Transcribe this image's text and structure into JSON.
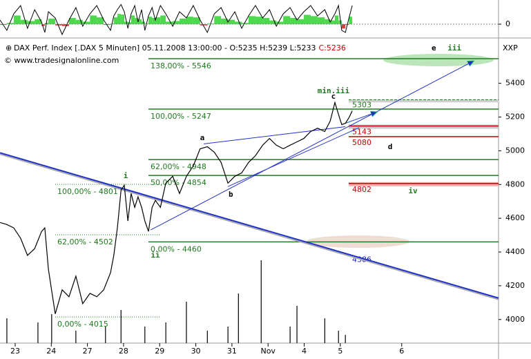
{
  "chart_data": {
    "type": "line",
    "title": "DAX Perf. Index [.DAX  5 Minuten] 05.11.2008 13:00:00 - O:5235 H:5239 L:5233",
    "title_close": "C:5236",
    "source": "© www.tradesignalonline.com",
    "axis_label": "XXP",
    "xlim": [
      -0.42,
      13.38
    ],
    "xticks": [
      {
        "value": 0,
        "label": "23"
      },
      {
        "value": 1,
        "label": "24"
      },
      {
        "value": 2,
        "label": "27"
      },
      {
        "value": 3,
        "label": "28"
      },
      {
        "value": 4,
        "label": "29"
      },
      {
        "value": 5,
        "label": "30"
      },
      {
        "value": 6,
        "label": "31"
      },
      {
        "value": 7,
        "label": "Nov"
      },
      {
        "value": 8,
        "label": "4"
      },
      {
        "value": 9,
        "label": "5"
      },
      {
        "value": 10.7,
        "label": "6"
      }
    ],
    "ylim": [
      3860,
      5640
    ],
    "yticks": [
      4000,
      4200,
      4400,
      4600,
      4800,
      5000,
      5200,
      5400
    ],
    "x": [
      -0.42,
      -0.23,
      -0.04,
      0.15,
      0.34,
      0.54,
      0.73,
      0.82,
      0.92,
      1.11,
      1.3,
      1.49,
      1.68,
      1.87,
      2.07,
      2.26,
      2.45,
      2.64,
      2.73,
      2.83,
      2.93,
      3.02,
      3.12,
      3.21,
      3.31,
      3.4,
      3.5,
      3.59,
      3.69,
      3.79,
      3.88,
      4.02,
      4.17,
      4.36,
      4.55,
      4.74,
      4.93,
      5.12,
      5.32,
      5.51,
      5.7,
      5.89,
      6.08,
      6.27,
      6.46,
      6.65,
      6.85,
      7.04,
      7.23,
      7.42,
      7.61,
      7.8,
      7.99,
      8.18,
      8.37,
      8.57,
      8.72,
      8.85,
      8.95,
      9.04,
      9.14,
      9.24,
      9.33
    ],
    "series": [
      {
        "name": "DAX",
        "color": "#000000",
        "values": [
          4575,
          4563,
          4543,
          4482,
          4380,
          4420,
          4522,
          4543,
          4298,
          4033,
          4176,
          4135,
          4257,
          4094,
          4155,
          4135,
          4176,
          4278,
          4380,
          4543,
          4767,
          4796,
          4584,
          4747,
          4665,
          4727,
          4665,
          4584,
          4522,
          4665,
          4706,
          4665,
          4808,
          4849,
          4747,
          4849,
          4910,
          5012,
          5024,
          4992,
          4931,
          4808,
          4849,
          4869,
          4931,
          4971,
          5033,
          5073,
          5033,
          5012,
          5033,
          5053,
          5073,
          5114,
          5134,
          5114,
          5176,
          5286,
          5216,
          5155,
          5163,
          5196,
          5237
        ]
      }
    ],
    "oscillator": {
      "color": "#000000",
      "ylim": [
        -0.5,
        1
      ],
      "yticks": [
        0
      ],
      "values": [
        0.2,
        -0.3,
        0.5,
        0.9,
        -0.2,
        0.7,
        0.1,
        -0.4,
        0.6,
        0.3,
        -0.5,
        0.2,
        0.8,
        -0.1,
        0.5,
        0.9,
        0.2,
        -0.3,
        0.4,
        0.7,
        0.95,
        0.6,
        -0.2,
        0.5,
        0.9,
        0.1,
        0.7,
        -0.3,
        0.4,
        0.8,
        0.2,
        0.9,
        0.5,
        -0.1,
        0.6,
        0.3,
        0.9,
        0.2,
        -0.4,
        0.5,
        0.8,
        0.1,
        0.6,
        -0.2,
        0.4,
        0.9,
        0.3,
        0.7,
        -0.1,
        0.5,
        0.8,
        0.2,
        0.6,
        0.9,
        0.4,
        0.7,
        0.1,
        0.5,
        0.9,
        -0.3,
        -0.4,
        0.3,
        0.9
      ]
    },
    "volume": {
      "color": "#000000",
      "ylim": [
        0,
        100
      ],
      "x": [
        -0.23,
        0.63,
        1.01,
        1.68,
        2.5,
        2.93,
        3.59,
        4.17,
        4.74,
        5.32,
        5.89,
        6.18,
        6.81,
        7.61,
        7.8,
        8.57,
        8.95,
        9.14
      ],
      "values": [
        30,
        25,
        35,
        15,
        20,
        40,
        20,
        25,
        50,
        15,
        20,
        60,
        100,
        20,
        45,
        30,
        15,
        10
      ]
    },
    "levels": [
      {
        "value": 5546,
        "label": "138,00% - 5546",
        "style": "solid"
      },
      {
        "value": 5247,
        "label": "100,00% - 5247",
        "style": "solid"
      },
      {
        "value": 4948,
        "label": "62,00% - 4948",
        "style": "solid"
      },
      {
        "value": 4854,
        "label": "50,00% - 4854",
        "style": "solid"
      },
      {
        "value": 4460,
        "label": "0,00% - 4460",
        "style": "solid"
      },
      {
        "value": 4801,
        "label": "100,00% - 4801",
        "style": "dotted"
      },
      {
        "value": 4502,
        "label": "62,00% - 4502",
        "style": "dotted"
      },
      {
        "value": 4015,
        "label": "0,00% - 4015",
        "style": "dotted"
      }
    ],
    "level_color": "#1f7a1f",
    "zones": [
      {
        "value": 5303,
        "color": "#1f7a1f",
        "style": "dashed"
      },
      {
        "value": 5143,
        "color": "#cc0000",
        "style": "band"
      },
      {
        "value": 5080,
        "color": "#cc0000",
        "style": "solid"
      },
      {
        "value": 4802,
        "color": "#cc0000",
        "style": "band"
      },
      {
        "value": 4386,
        "color": "#2020c0",
        "style": "label"
      }
    ],
    "trend_lines": [
      {
        "x": [
          -0.42,
          13.38
        ],
        "y": [
          4988,
          4127
        ],
        "arrow": false
      },
      {
        "x": [
          3.75,
          12.68
        ],
        "y": [
          4531,
          5531
        ],
        "arrow": true
      },
      {
        "x": [
          5.22,
          9.14
        ],
        "y": [
          5041,
          5143
        ],
        "arrow": false
      },
      {
        "x": [
          5.89,
          9.52
        ],
        "y": [
          4788,
          5137
        ],
        "arrow": false
      },
      {
        "x": [
          9.14,
          10.0
        ],
        "y": [
          5163,
          5229
        ],
        "arrow": true
      }
    ],
    "trend_color": "#2030c8",
    "wave_labels": [
      {
        "text": "e",
        "x": 11.59,
        "y": 5607,
        "color": "#000000"
      },
      {
        "text": "iii",
        "x": 12.16,
        "y": 5607,
        "color": "#1f7a1f"
      },
      {
        "text": "min.iii",
        "x": 8.81,
        "y": 5354,
        "color": "#1f7a1f"
      },
      {
        "text": "c",
        "x": 8.81,
        "y": 5321,
        "color": "#000000"
      },
      {
        "text": "a",
        "x": 5.18,
        "y": 5075,
        "color": "#000000"
      },
      {
        "text": "b",
        "x": 5.97,
        "y": 4740,
        "color": "#000000"
      },
      {
        "text": "i",
        "x": 3.06,
        "y": 4850,
        "color": "#1f7a1f"
      },
      {
        "text": "ii",
        "x": 3.88,
        "y": 4380,
        "color": "#1f7a1f"
      },
      {
        "text": "d",
        "x": 10.38,
        "y": 5022,
        "color": "#000000"
      },
      {
        "text": "iv",
        "x": 11.01,
        "y": 4760,
        "color": "#1f7a1f"
      }
    ]
  }
}
